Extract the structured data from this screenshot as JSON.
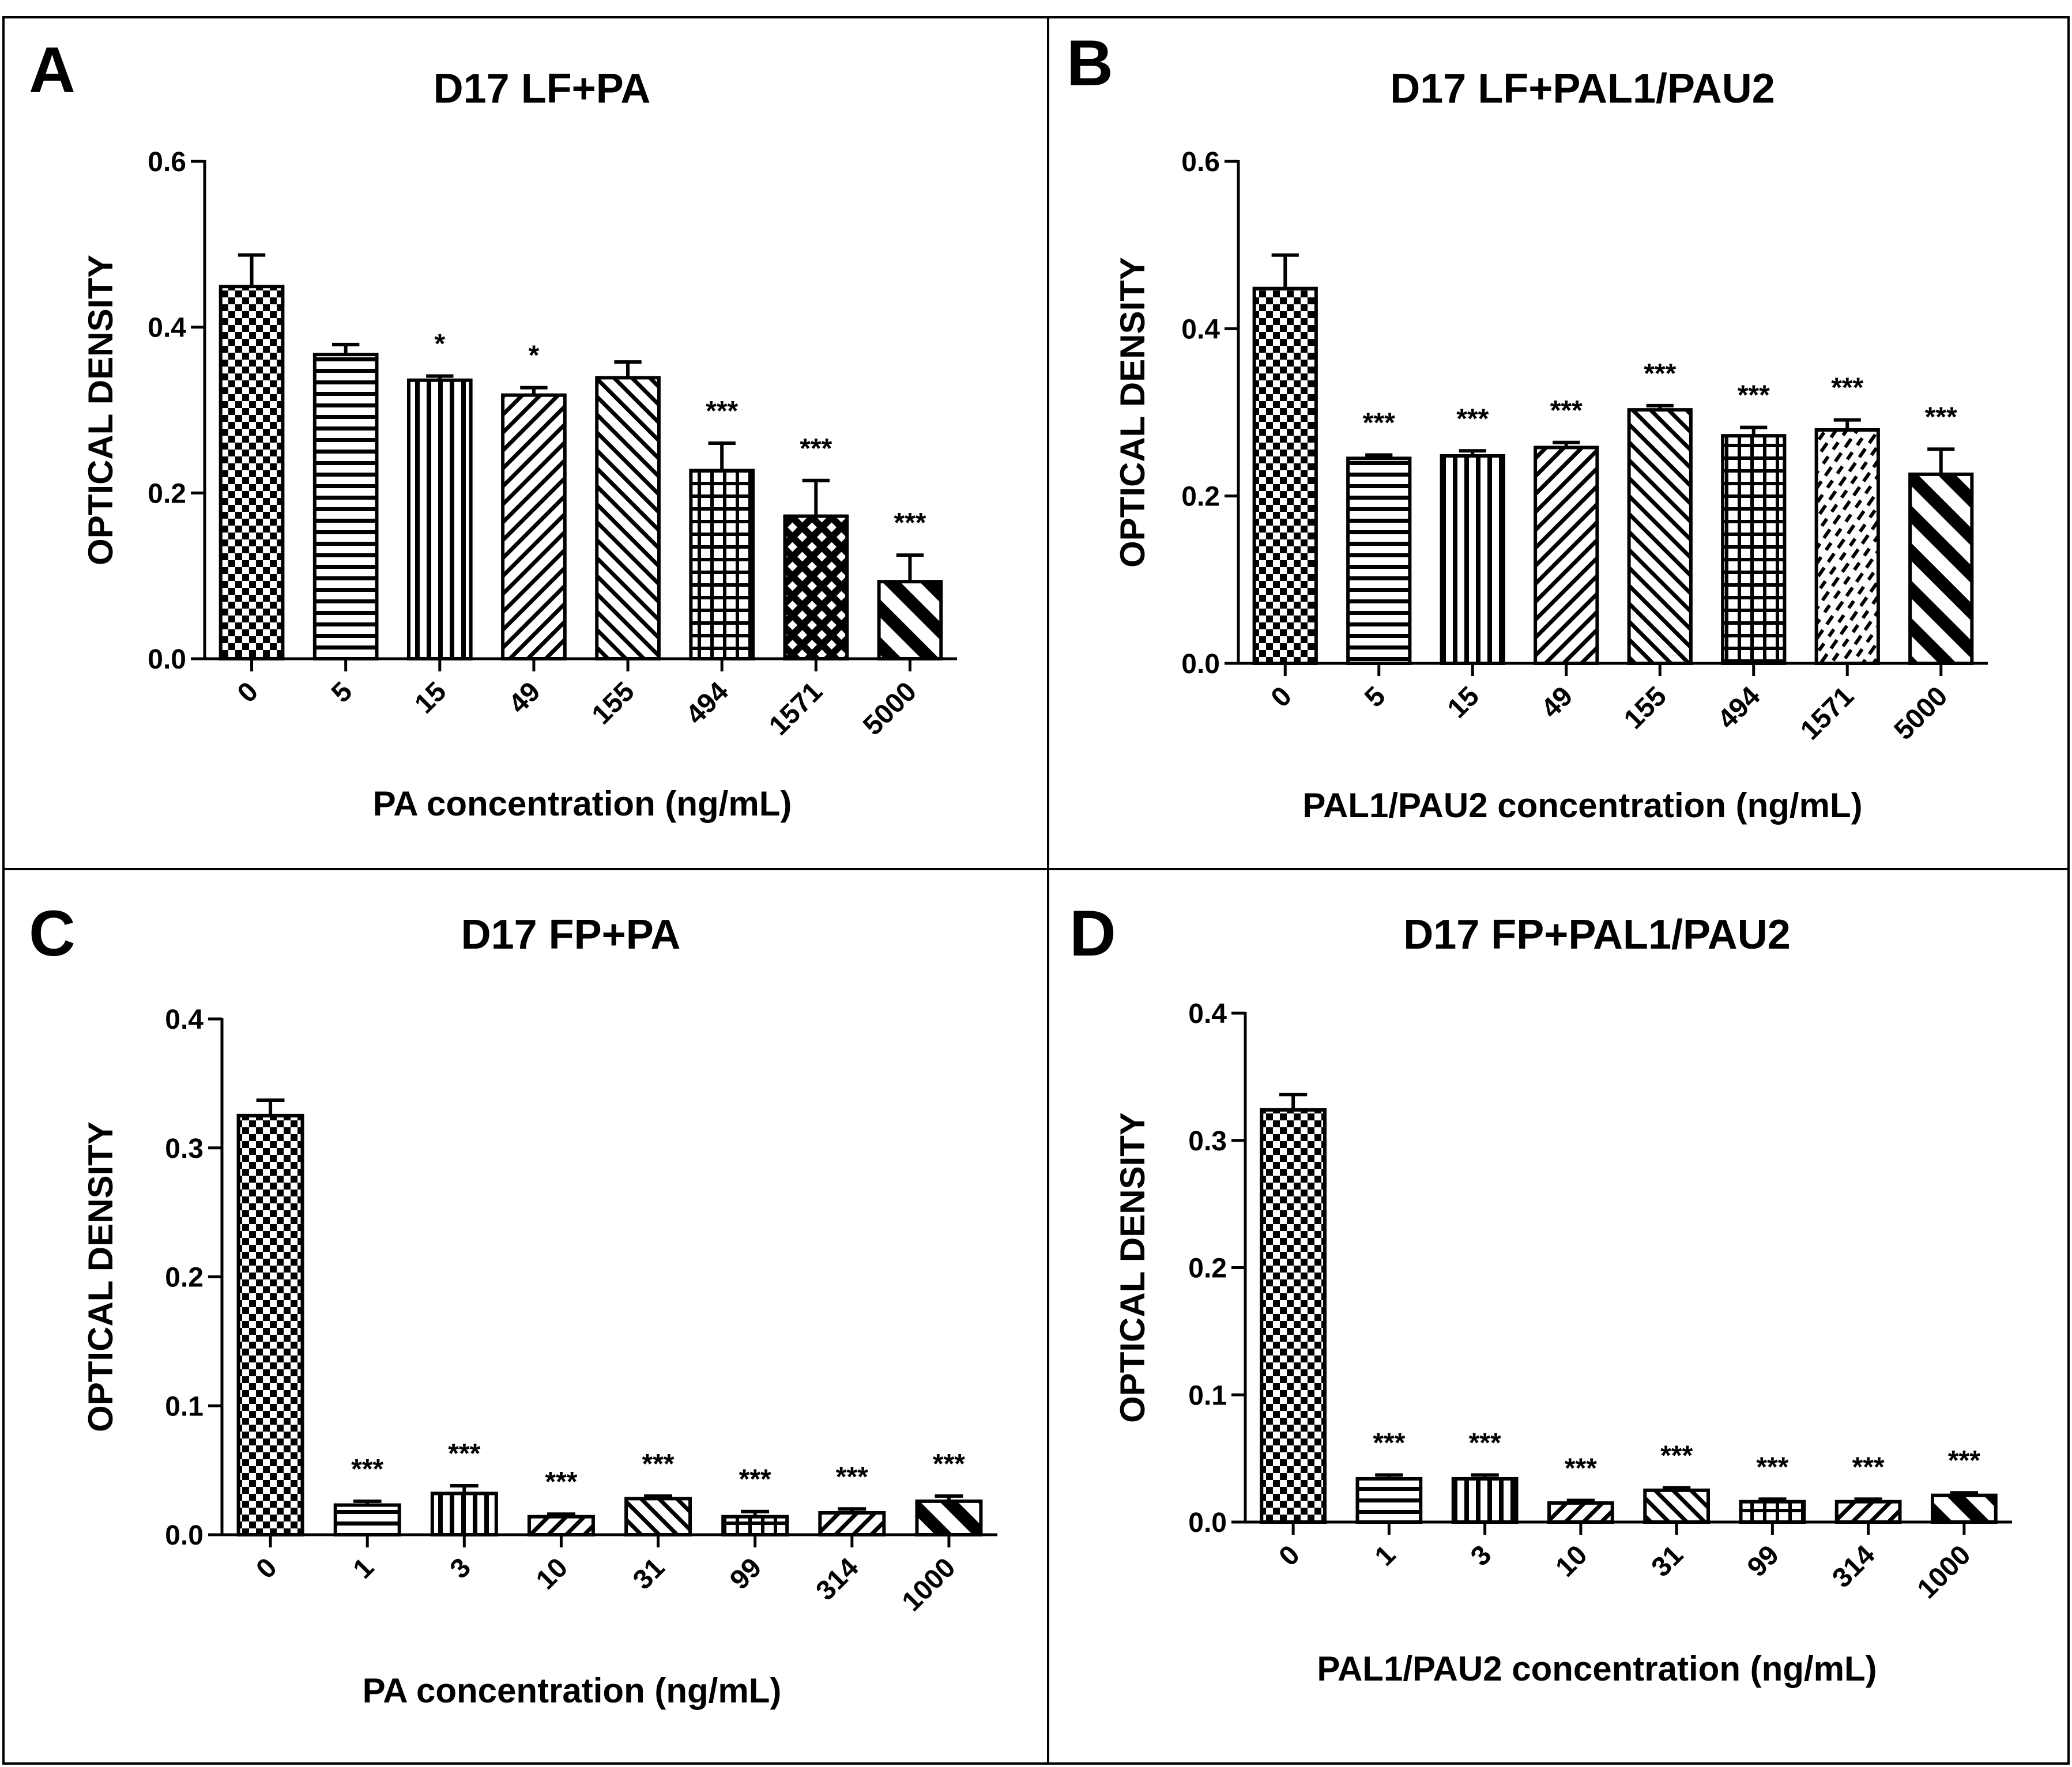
{
  "chart_data": [
    {
      "type": "bar",
      "panel": "A",
      "title": "D17  LF+PA",
      "xlabel": "PA concentration (ng/mL)",
      "ylabel": "OPTICAL DENSITY",
      "ylim": [
        0,
        0.6
      ],
      "yticks": [
        "0.0",
        "0.2",
        "0.4",
        "0.6"
      ],
      "yticks_values": [
        0,
        0.2,
        0.4,
        0.6
      ],
      "categories": [
        "0",
        "5",
        "15",
        "49",
        "155",
        "494",
        "1571",
        "5000"
      ],
      "values": [
        0.449,
        0.367,
        0.336,
        0.318,
        0.339,
        0.227,
        0.172,
        0.093
      ],
      "errors": [
        0.038,
        0.012,
        0.005,
        0.009,
        0.019,
        0.033,
        0.043,
        0.032
      ],
      "significance": [
        "",
        "",
        "*",
        "*",
        "",
        "***",
        "***",
        "***"
      ],
      "patterns": [
        "checker",
        "hlines",
        "vlines",
        "diag-right",
        "diag-left",
        "grid",
        "diamond",
        "diag-left-thick"
      ]
    },
    {
      "type": "bar",
      "panel": "B",
      "title": "D17  LF+PAL1/PAU2",
      "xlabel": "PAL1/PAU2 concentration (ng/mL)",
      "ylabel": "OPTICAL DENSITY",
      "ylim": [
        0,
        0.6
      ],
      "yticks": [
        "0.0",
        "0.2",
        "0.4",
        "0.6"
      ],
      "yticks_values": [
        0,
        0.2,
        0.4,
        0.6
      ],
      "categories": [
        "0",
        "5",
        "15",
        "49",
        "155",
        "494",
        "1571",
        "5000"
      ],
      "values": [
        0.448,
        0.245,
        0.248,
        0.258,
        0.303,
        0.272,
        0.279,
        0.226
      ],
      "errors": [
        0.04,
        0.004,
        0.006,
        0.006,
        0.005,
        0.01,
        0.012,
        0.03
      ],
      "significance": [
        "",
        "***",
        "***",
        "***",
        "***",
        "***",
        "***",
        "***"
      ],
      "patterns": [
        "checker",
        "hlines",
        "vlines",
        "diag-right",
        "diag-left",
        "grid",
        "dashes",
        "diag-left-thick"
      ]
    },
    {
      "type": "bar",
      "panel": "C",
      "title": "D17 FP+PA",
      "xlabel": "PA concentration (ng/mL)",
      "ylabel": "OPTICAL DENSITY",
      "ylim": [
        0,
        0.4
      ],
      "yticks": [
        "0.0",
        "0.1",
        "0.2",
        "0.3",
        "0.4"
      ],
      "yticks_values": [
        0,
        0.1,
        0.2,
        0.3,
        0.4
      ],
      "categories": [
        "0",
        "1",
        "3",
        "10",
        "31",
        "99",
        "314",
        "1000"
      ],
      "values": [
        0.325,
        0.023,
        0.032,
        0.014,
        0.028,
        0.014,
        0.017,
        0.026
      ],
      "errors": [
        0.012,
        0.003,
        0.006,
        0.002,
        0.002,
        0.004,
        0.003,
        0.004
      ],
      "significance": [
        "",
        "***",
        "***",
        "***",
        "***",
        "***",
        "***",
        "***"
      ],
      "patterns": [
        "checker",
        "hlines",
        "vlines",
        "diag-right",
        "diag-left",
        "grid",
        "diag-right",
        "diag-left-thick"
      ]
    },
    {
      "type": "bar",
      "panel": "D",
      "title": "D17 FP+PAL1/PAU2",
      "xlabel": "PAL1/PAU2 concentration (ng/mL)",
      "ylabel": "OPTICAL DENSITY",
      "ylim": [
        0,
        0.4
      ],
      "yticks": [
        "0.0",
        "0.1",
        "0.2",
        "0.3",
        "0.4"
      ],
      "yticks_values": [
        0,
        0.1,
        0.2,
        0.3,
        0.4
      ],
      "categories": [
        "0",
        "1",
        "3",
        "10",
        "31",
        "99",
        "314",
        "1000"
      ],
      "values": [
        0.324,
        0.034,
        0.034,
        0.015,
        0.025,
        0.016,
        0.016,
        0.021
      ],
      "errors": [
        0.012,
        0.003,
        0.003,
        0.002,
        0.002,
        0.002,
        0.002,
        0.002
      ],
      "significance": [
        "",
        "***",
        "***",
        "***",
        "***",
        "***",
        "***",
        "***"
      ],
      "patterns": [
        "checker",
        "hlines",
        "vlines",
        "diag-right",
        "diag-left",
        "grid",
        "diag-right",
        "diag-left-thick"
      ]
    }
  ]
}
